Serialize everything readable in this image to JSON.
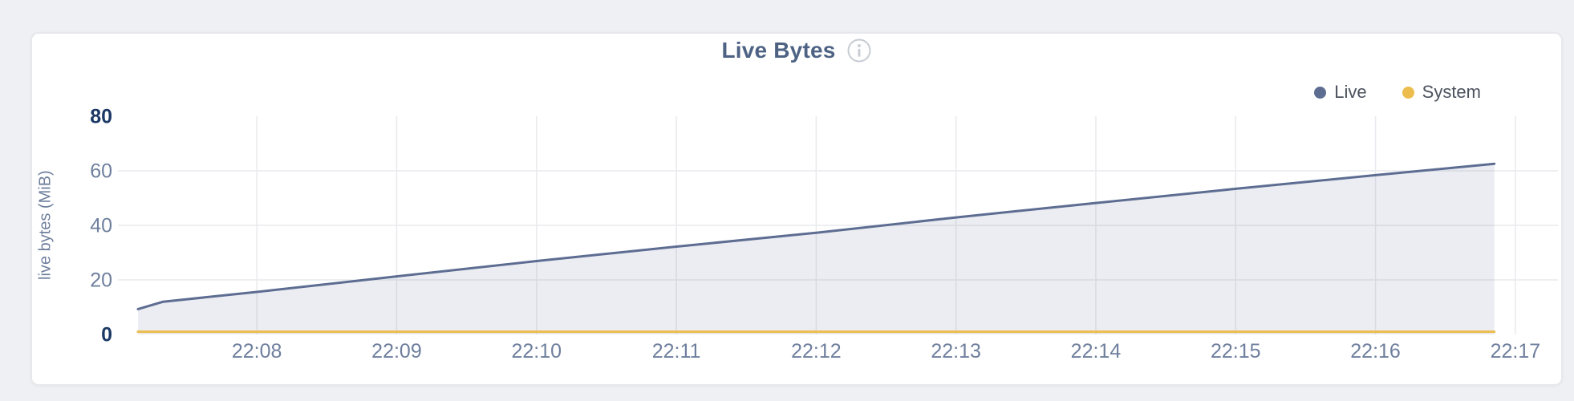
{
  "card": {
    "title": "Live Bytes",
    "info_icon": "info-icon"
  },
  "colors": {
    "page_bg": "#eef0f3",
    "card_border": "#e7e8ec",
    "title": "#4e6384",
    "grid": "#e9eaed",
    "tick_label": "#6e7f9d",
    "tick_label_strong": "#1d3a66",
    "legend_text": "#4b525e",
    "info_icon": "#c7ccd3",
    "live": "#5d6d92",
    "live_fill": "rgba(93,109,146,0.12)",
    "system": "#ecbc4c"
  },
  "chart_data": {
    "type": "area",
    "title": "Live Bytes",
    "xlabel": "",
    "ylabel": "live bytes (MiB)",
    "ylim": [
      0,
      80
    ],
    "y_ticks": [
      0,
      20,
      40,
      60,
      80
    ],
    "y_ticks_strong": [
      0,
      80
    ],
    "grid": true,
    "legend_position": "top-right",
    "x_unit": "minutes after 22:00",
    "x_domain_minutes": [
      7.15,
      17.0
    ],
    "x_ticks": [
      {
        "minute": 8,
        "label": "22:08"
      },
      {
        "minute": 9,
        "label": "22:09"
      },
      {
        "minute": 10,
        "label": "22:10"
      },
      {
        "minute": 11,
        "label": "22:11"
      },
      {
        "minute": 12,
        "label": "22:12"
      },
      {
        "minute": 13,
        "label": "22:13"
      },
      {
        "minute": 14,
        "label": "22:14"
      },
      {
        "minute": 15,
        "label": "22:15"
      },
      {
        "minute": 16,
        "label": "22:16"
      },
      {
        "minute": 17,
        "label": "22:17"
      }
    ],
    "series": [
      {
        "name": "Live",
        "color": "#5d6d92",
        "fill": "rgba(93,109,146,0.12)",
        "x_minutes": [
          7.15,
          7.33,
          8,
          9,
          10,
          11,
          12,
          13,
          14,
          15,
          16,
          16.85
        ],
        "values": [
          9.3,
          12.0,
          15.6,
          21.3,
          26.9,
          32.2,
          37.3,
          42.9,
          48.2,
          53.4,
          58.4,
          62.6
        ]
      },
      {
        "name": "System",
        "color": "#ecbc4c",
        "fill": null,
        "x_minutes": [
          7.15,
          16.85
        ],
        "values": [
          1.0,
          1.0
        ]
      }
    ]
  }
}
